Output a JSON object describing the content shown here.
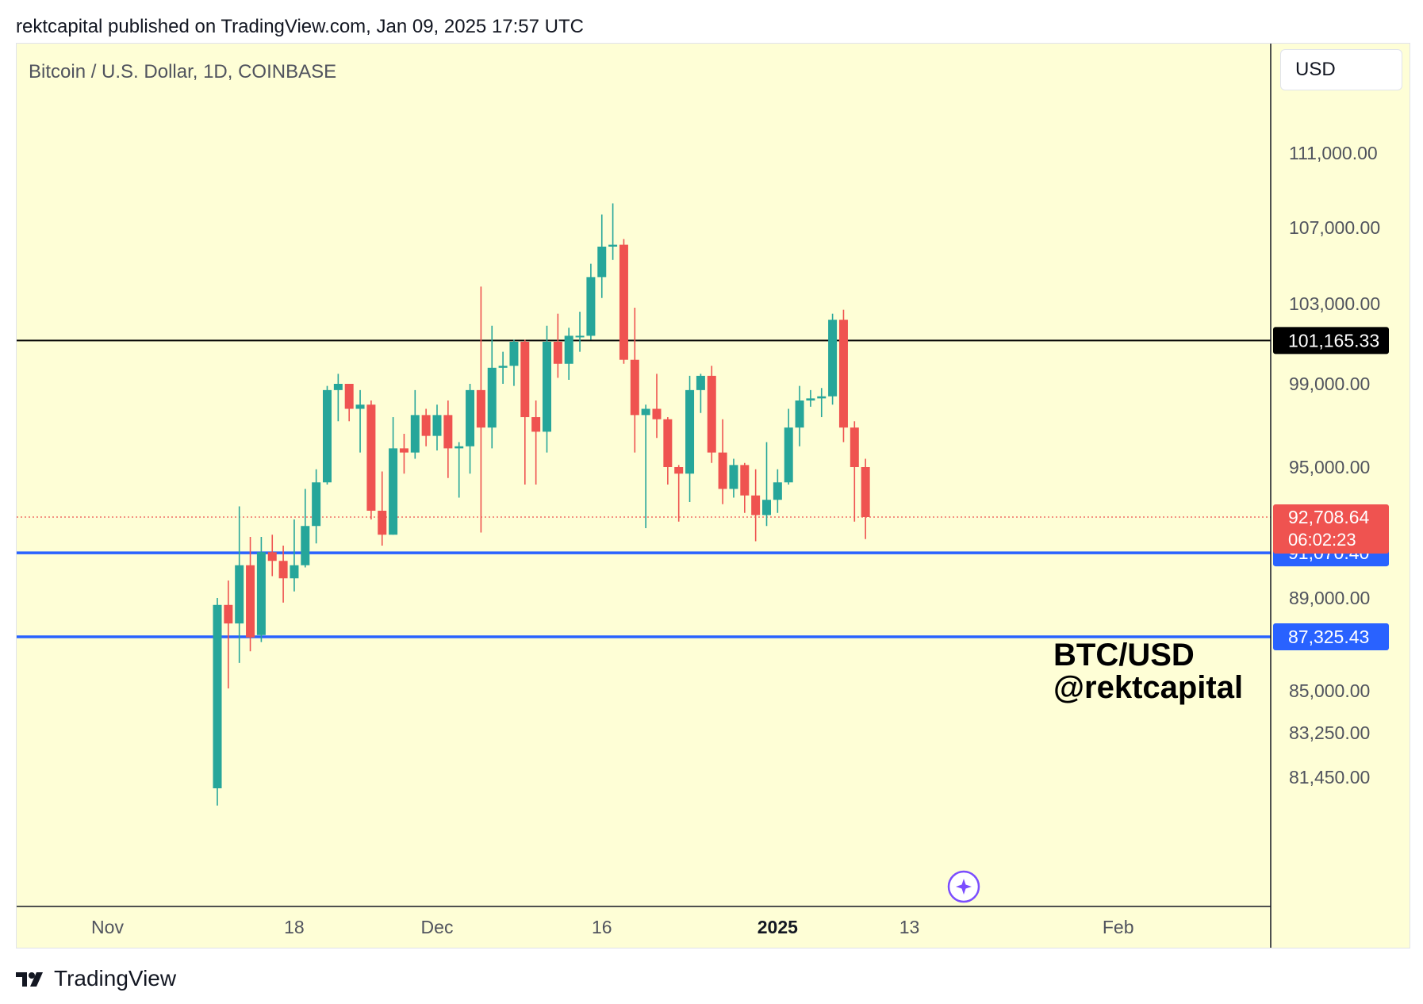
{
  "header": {
    "text": "rektcapital published on TradingView.com, Jan 09, 2025 17:57 UTC"
  },
  "symbol": {
    "title": "Bitcoin / U.S. Dollar, 1D, COINBASE"
  },
  "currency": {
    "label": "USD"
  },
  "watermark": {
    "line1": "BTC/USD",
    "line2": "@rektcapital"
  },
  "footer": {
    "brand": "TradingView"
  },
  "colors": {
    "background": "#fefed6",
    "up": "#26a69a",
    "down": "#ef5350",
    "support_line": "#2962ff",
    "resistance_line": "#000000"
  },
  "chart_data": {
    "type": "candlestick",
    "interval": "1D",
    "exchange": "COINBASE",
    "grid": false,
    "y_axis_ticks": [
      "111,000.00",
      "107,000.00",
      "103,000.00",
      "99,000.00",
      "95,000.00",
      "89,000.00",
      "85,000.00",
      "83,250.00",
      "81,450.00"
    ],
    "x_axis_ticks": [
      {
        "label": "Nov",
        "bold": false
      },
      {
        "label": "18",
        "bold": false
      },
      {
        "label": "Dec",
        "bold": false
      },
      {
        "label": "16",
        "bold": false
      },
      {
        "label": "2025",
        "bold": true
      },
      {
        "label": "13",
        "bold": false
      },
      {
        "label": "Feb",
        "bold": false
      }
    ],
    "horizontal_lines": [
      {
        "value": 101165.33,
        "label": "101,165.33",
        "color": "#000000",
        "style": "solid"
      },
      {
        "value": 91070.4,
        "label": "91,070.40",
        "color": "#2962ff",
        "style": "solid"
      },
      {
        "value": 87325.43,
        "label": "87,325.43",
        "color": "#2962ff",
        "style": "solid"
      }
    ],
    "last_price": {
      "value": 92708.64,
      "label": "92,708.64",
      "countdown": "06:02:23",
      "color": "#ef5350"
    },
    "candles": [
      {
        "date": "2024-11-11",
        "o": 81000,
        "h": 89000,
        "l": 80300,
        "c": 88700
      },
      {
        "date": "2024-11-12",
        "o": 88700,
        "h": 89800,
        "l": 85100,
        "c": 87900
      },
      {
        "date": "2024-11-13",
        "o": 87900,
        "h": 93200,
        "l": 86200,
        "c": 90500
      },
      {
        "date": "2024-11-14",
        "o": 90500,
        "h": 91800,
        "l": 86700,
        "c": 87300
      },
      {
        "date": "2024-11-15",
        "o": 87400,
        "h": 91800,
        "l": 87100,
        "c": 91100
      },
      {
        "date": "2024-11-16",
        "o": 91100,
        "h": 91900,
        "l": 90000,
        "c": 90700
      },
      {
        "date": "2024-11-17",
        "o": 90700,
        "h": 91400,
        "l": 88800,
        "c": 89900
      },
      {
        "date": "2024-11-18",
        "o": 89900,
        "h": 92600,
        "l": 89300,
        "c": 90500
      },
      {
        "date": "2024-11-19",
        "o": 90500,
        "h": 94000,
        "l": 90400,
        "c": 92300
      },
      {
        "date": "2024-11-20",
        "o": 92300,
        "h": 94900,
        "l": 91500,
        "c": 94300
      },
      {
        "date": "2024-11-21",
        "o": 94300,
        "h": 98900,
        "l": 94200,
        "c": 98700
      },
      {
        "date": "2024-11-22",
        "o": 98700,
        "h": 99500,
        "l": 97200,
        "c": 99000
      },
      {
        "date": "2024-11-23",
        "o": 99000,
        "h": 99000,
        "l": 97200,
        "c": 97800
      },
      {
        "date": "2024-11-24",
        "o": 97800,
        "h": 98700,
        "l": 95700,
        "c": 98000
      },
      {
        "date": "2024-11-25",
        "o": 98000,
        "h": 98200,
        "l": 92600,
        "c": 93000
      },
      {
        "date": "2024-11-26",
        "o": 93000,
        "h": 94800,
        "l": 91400,
        "c": 91900
      },
      {
        "date": "2024-11-27",
        "o": 91900,
        "h": 97400,
        "l": 91900,
        "c": 95900
      },
      {
        "date": "2024-11-28",
        "o": 95900,
        "h": 96600,
        "l": 94700,
        "c": 95700
      },
      {
        "date": "2024-11-29",
        "o": 95700,
        "h": 98700,
        "l": 95400,
        "c": 97500
      },
      {
        "date": "2024-11-30",
        "o": 97500,
        "h": 97800,
        "l": 96000,
        "c": 96500
      },
      {
        "date": "2024-12-01",
        "o": 96500,
        "h": 98000,
        "l": 95800,
        "c": 97500
      },
      {
        "date": "2024-12-02",
        "o": 97500,
        "h": 98200,
        "l": 94500,
        "c": 95900
      },
      {
        "date": "2024-12-03",
        "o": 95900,
        "h": 96200,
        "l": 93600,
        "c": 96000
      },
      {
        "date": "2024-12-04",
        "o": 96000,
        "h": 99000,
        "l": 94700,
        "c": 98700
      },
      {
        "date": "2024-12-05",
        "o": 98700,
        "h": 103900,
        "l": 92000,
        "c": 96900
      },
      {
        "date": "2024-12-06",
        "o": 96900,
        "h": 101900,
        "l": 95900,
        "c": 99800
      },
      {
        "date": "2024-12-07",
        "o": 99800,
        "h": 100600,
        "l": 99000,
        "c": 99900
      },
      {
        "date": "2024-12-08",
        "o": 99900,
        "h": 101200,
        "l": 98900,
        "c": 101100
      },
      {
        "date": "2024-12-09",
        "o": 101100,
        "h": 101200,
        "l": 94200,
        "c": 97400
      },
      {
        "date": "2024-12-10",
        "o": 97400,
        "h": 98200,
        "l": 94200,
        "c": 96700
      },
      {
        "date": "2024-12-11",
        "o": 96700,
        "h": 101900,
        "l": 95700,
        "c": 101100
      },
      {
        "date": "2024-12-12",
        "o": 101100,
        "h": 102500,
        "l": 99300,
        "c": 100000
      },
      {
        "date": "2024-12-13",
        "o": 100000,
        "h": 101800,
        "l": 99200,
        "c": 101400
      },
      {
        "date": "2024-12-14",
        "o": 101400,
        "h": 102600,
        "l": 100600,
        "c": 101400
      },
      {
        "date": "2024-12-15",
        "o": 101400,
        "h": 105100,
        "l": 101200,
        "c": 104400
      },
      {
        "date": "2024-12-16",
        "o": 104400,
        "h": 107700,
        "l": 103300,
        "c": 106000
      },
      {
        "date": "2024-12-17",
        "o": 106000,
        "h": 108300,
        "l": 105300,
        "c": 106100
      },
      {
        "date": "2024-12-18",
        "o": 106100,
        "h": 106400,
        "l": 100000,
        "c": 100200
      },
      {
        "date": "2024-12-19",
        "o": 100200,
        "h": 102800,
        "l": 95700,
        "c": 97500
      },
      {
        "date": "2024-12-20",
        "o": 97500,
        "h": 98000,
        "l": 92200,
        "c": 97800
      },
      {
        "date": "2024-12-21",
        "o": 97800,
        "h": 99500,
        "l": 96400,
        "c": 97300
      },
      {
        "date": "2024-12-22",
        "o": 97300,
        "h": 97400,
        "l": 94200,
        "c": 95000
      },
      {
        "date": "2024-12-23",
        "o": 95000,
        "h": 95100,
        "l": 92500,
        "c": 94700
      },
      {
        "date": "2024-12-24",
        "o": 94700,
        "h": 99400,
        "l": 93400,
        "c": 98700
      },
      {
        "date": "2024-12-25",
        "o": 98700,
        "h": 99500,
        "l": 97600,
        "c": 99400
      },
      {
        "date": "2024-12-26",
        "o": 99400,
        "h": 99900,
        "l": 95200,
        "c": 95700
      },
      {
        "date": "2024-12-27",
        "o": 95700,
        "h": 97300,
        "l": 93300,
        "c": 94000
      },
      {
        "date": "2024-12-28",
        "o": 94000,
        "h": 95400,
        "l": 93600,
        "c": 95100
      },
      {
        "date": "2024-12-29",
        "o": 95100,
        "h": 95200,
        "l": 92900,
        "c": 93700
      },
      {
        "date": "2024-12-30",
        "o": 93700,
        "h": 94900,
        "l": 91600,
        "c": 92800
      },
      {
        "date": "2024-12-31",
        "o": 92800,
        "h": 96200,
        "l": 92300,
        "c": 93500
      },
      {
        "date": "2025-01-01",
        "o": 93500,
        "h": 94900,
        "l": 92900,
        "c": 94300
      },
      {
        "date": "2025-01-02",
        "o": 94300,
        "h": 97800,
        "l": 94200,
        "c": 96900
      },
      {
        "date": "2025-01-03",
        "o": 96900,
        "h": 98900,
        "l": 96000,
        "c": 98200
      },
      {
        "date": "2025-01-04",
        "o": 98200,
        "h": 98700,
        "l": 97900,
        "c": 98300
      },
      {
        "date": "2025-01-05",
        "o": 98300,
        "h": 98800,
        "l": 97400,
        "c": 98400
      },
      {
        "date": "2025-01-06",
        "o": 98400,
        "h": 102500,
        "l": 98000,
        "c": 102200
      },
      {
        "date": "2025-01-07",
        "o": 102200,
        "h": 102700,
        "l": 96200,
        "c": 96900
      },
      {
        "date": "2025-01-08",
        "o": 96900,
        "h": 97200,
        "l": 92500,
        "c": 95000
      },
      {
        "date": "2025-01-09",
        "o": 95000,
        "h": 95400,
        "l": 91700,
        "c": 92708.64
      }
    ]
  }
}
